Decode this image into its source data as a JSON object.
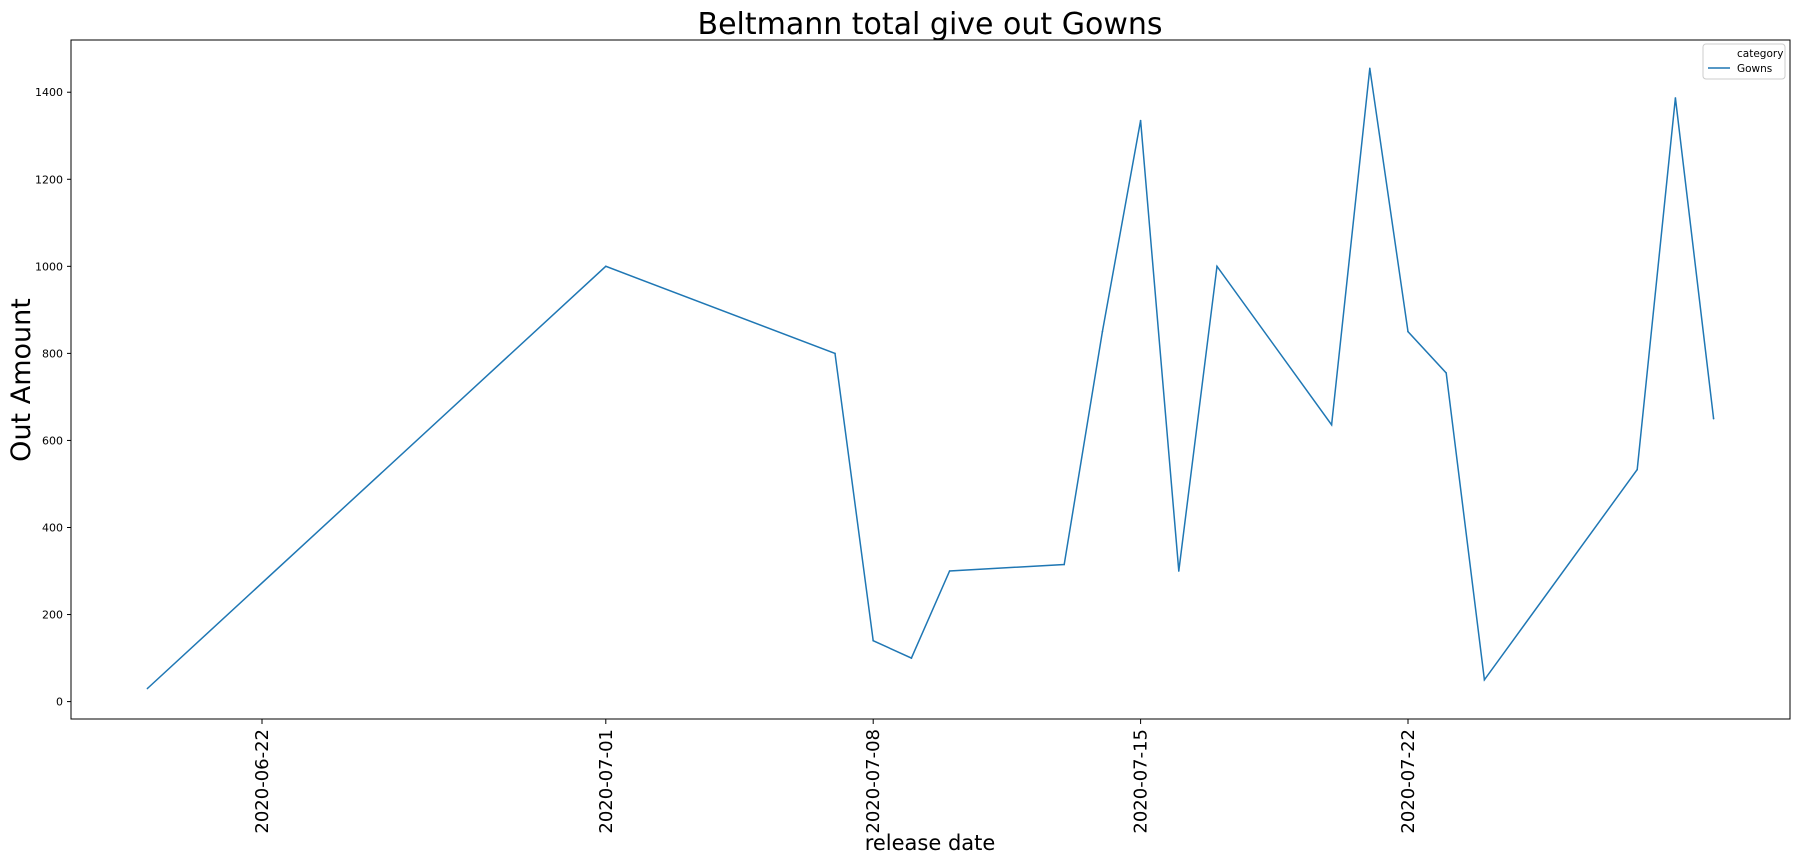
{
  "chart_data": {
    "type": "line",
    "title": "Beltmann total give out Gowns",
    "xlabel": "release date",
    "ylabel": "Out Amount",
    "x_ticks": [
      "2020-06-22",
      "2020-07-01",
      "2020-07-08",
      "2020-07-15",
      "2020-07-22"
    ],
    "y_ticks": [
      0,
      200,
      400,
      600,
      800,
      1000,
      1200,
      1400
    ],
    "xlim": [
      "2020-06-17",
      "2020-08-01"
    ],
    "ylim": [
      -40,
      1520
    ],
    "grid": false,
    "legend": {
      "title": "category",
      "placement": "top-right"
    },
    "series": [
      {
        "name": "Gowns",
        "color": "#1f77b4",
        "x": [
          "2020-06-19",
          "2020-07-01",
          "2020-07-07",
          "2020-07-08",
          "2020-07-09",
          "2020-07-10",
          "2020-07-13",
          "2020-07-14",
          "2020-07-15",
          "2020-07-16",
          "2020-07-17",
          "2020-07-20",
          "2020-07-21",
          "2020-07-22",
          "2020-07-23",
          "2020-07-24",
          "2020-07-28",
          "2020-07-29",
          "2020-07-30"
        ],
        "values": [
          30,
          1000,
          800,
          140,
          100,
          300,
          315,
          850,
          1335,
          300,
          1000,
          636,
          1455,
          850,
          755,
          50,
          533,
          1387,
          650
        ]
      }
    ]
  }
}
